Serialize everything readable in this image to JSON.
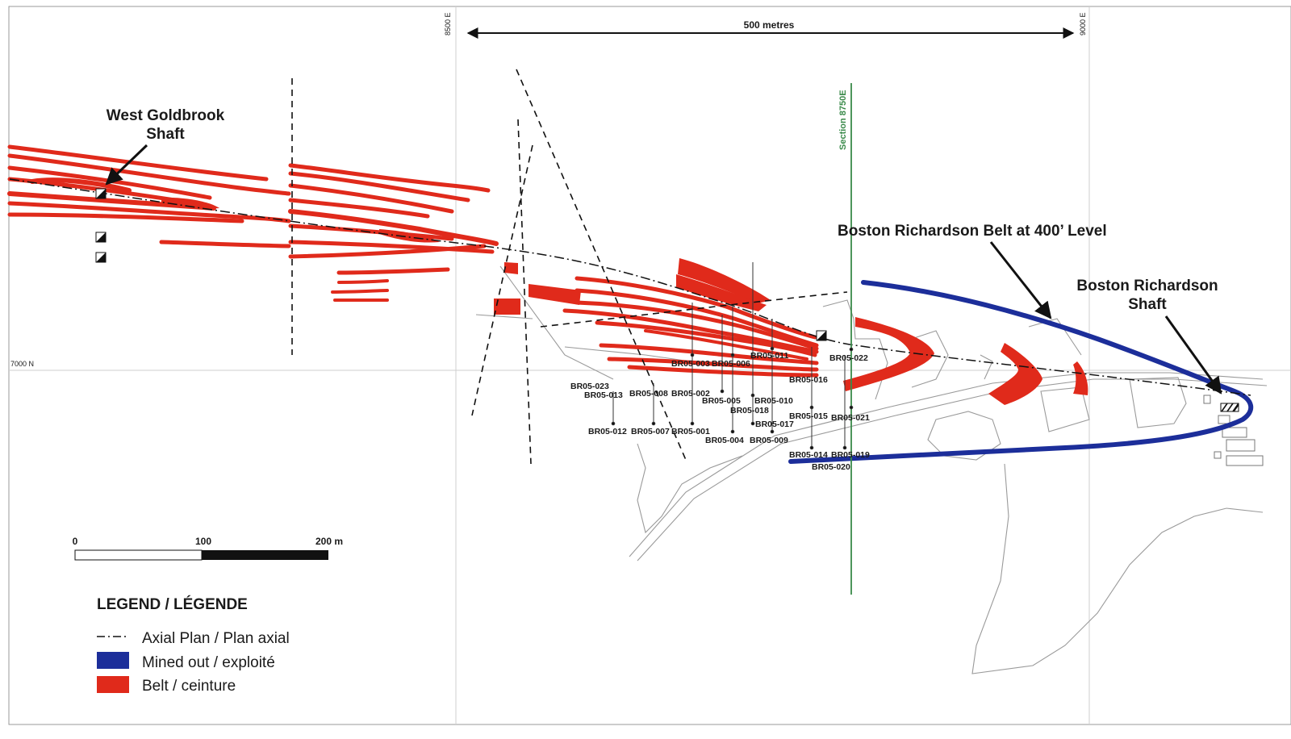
{
  "map": {
    "grid_labels": {
      "e8500": "8500 E",
      "e9000": "9000 E",
      "n7000": "7000 N"
    },
    "distance_label": "500 metres",
    "section_label": "Section 8750E",
    "labels": {
      "west_goldbrook_line1": "West Goldbrook",
      "west_goldbrook_line2": "Shaft",
      "br_belt": "Boston Richardson Belt at 400’ Level",
      "br_shaft_line1": "Boston Richardson",
      "br_shaft_line2": "Shaft"
    },
    "drill_holes": [
      "BR05-023",
      "BR05-013",
      "BR05-008",
      "BR05-002",
      "BR05-003",
      "BR05-006",
      "BR05-011",
      "BR05-022",
      "BR05-016",
      "BR05-005",
      "BR05-010",
      "BR05-018",
      "BR05-017",
      "BR05-015",
      "BR05-021",
      "BR05-012",
      "BR05-007",
      "BR05-001",
      "BR05-004",
      "BR05-009",
      "BR05-014",
      "BR05-019",
      "BR05-020"
    ],
    "colors": {
      "belt": "#e02a1b",
      "mined_out": "#1c2e9a",
      "section_line": "#3a8a4a",
      "grid": "#cfcfcf",
      "roads": "#9a9a9a"
    }
  },
  "scale": {
    "tick_0": "0",
    "tick_100": "100",
    "tick_200": "200 m"
  },
  "legend": {
    "title": "LEGEND / LÉGENDE",
    "items": [
      {
        "label": "Axial Plan / Plan axial",
        "symbol": "dash-dot-line-icon"
      },
      {
        "label": "Mined out / exploité",
        "color": "#1c2e9a"
      },
      {
        "label": "Belt / ceinture",
        "color": "#e02a1b"
      }
    ]
  }
}
